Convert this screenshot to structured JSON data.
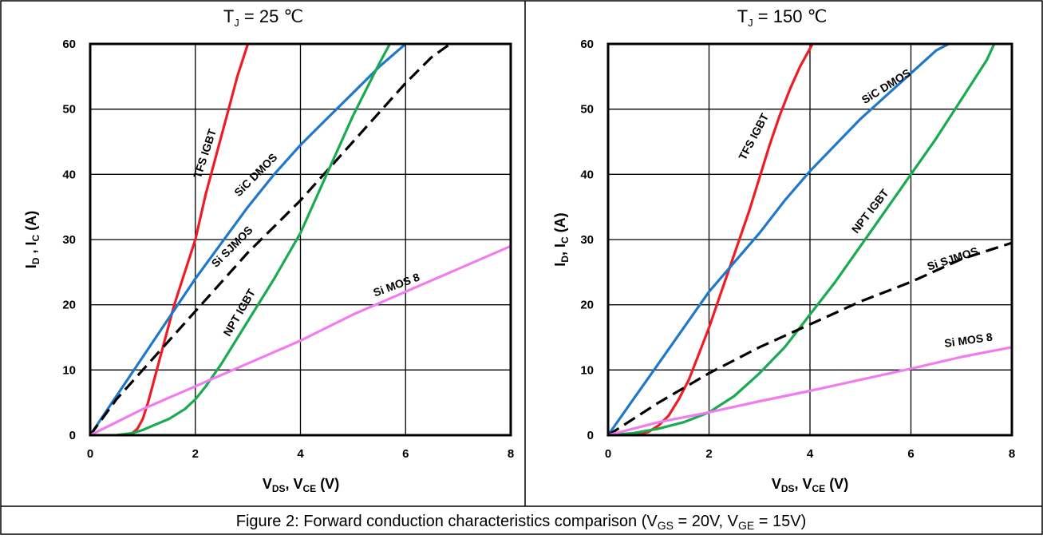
{
  "caption": {
    "prefix": "Figure 2:  Forward conduction characteristics comparison (V",
    "sub1": "GS",
    "mid": " = 20V, V",
    "sub2": "GE",
    "suffix": " = 15V)"
  },
  "colors": {
    "tfs_igbt": "#ee1c24",
    "sic_dmos": "#1f78c8",
    "npt_igbt": "#1aab50",
    "si_sjmos": "#000000",
    "si_mos8": "#f07cf0"
  },
  "chart_data": [
    {
      "type": "line",
      "title_main": "T",
      "title_sub": "J",
      "title_rest": " = 25 ℃",
      "xlabel": {
        "a": "V",
        "a_sub": "DS",
        "b": ", V",
        "b_sub": "CE",
        "c": " (V)"
      },
      "ylabel": {
        "a": "I",
        "a_sub": "D",
        "b": " , I",
        "b_sub": "C",
        "c": " (A)"
      },
      "xlim": [
        0,
        8
      ],
      "ylim": [
        0,
        60
      ],
      "xticks": [
        "0",
        "2",
        "4",
        "6",
        "8"
      ],
      "yticks": [
        "0",
        "10",
        "20",
        "30",
        "40",
        "50",
        "60"
      ],
      "grid": true,
      "series": [
        {
          "name": "TFS IGBT",
          "key": "tfs_igbt",
          "dash": false,
          "x": [
            0.6,
            0.8,
            0.9,
            1.0,
            1.1,
            1.2,
            1.4,
            1.6,
            1.8,
            2.0,
            2.2,
            2.4,
            2.6,
            2.8,
            3.0
          ],
          "y": [
            0,
            0.3,
            1,
            2.5,
            5,
            8,
            14,
            20,
            25,
            30,
            37,
            43,
            49,
            55,
            60
          ]
        },
        {
          "name": "SiC DMOS",
          "key": "sic_dmos",
          "dash": false,
          "x": [
            0,
            0.5,
            1,
            1.5,
            2,
            2.5,
            3,
            3.5,
            4,
            4.5,
            5,
            5.5,
            6
          ],
          "y": [
            0,
            6,
            12,
            18,
            24,
            29.5,
            35,
            40,
            44.5,
            48.5,
            52.5,
            56.5,
            60
          ]
        },
        {
          "name": "Si SJMOS",
          "key": "si_sjmos",
          "dash": true,
          "x": [
            0,
            0.5,
            1,
            1.5,
            2,
            2.5,
            3,
            3.5,
            4,
            4.5,
            5,
            5.5,
            6,
            6.5,
            6.85
          ],
          "y": [
            0,
            5.5,
            10,
            14.5,
            19,
            23.5,
            28,
            32,
            36,
            40.5,
            45,
            49.5,
            54,
            58,
            60
          ]
        },
        {
          "name": "NPT IGBT",
          "key": "npt_igbt",
          "dash": false,
          "x": [
            0.5,
            0.8,
            1.0,
            1.2,
            1.5,
            1.8,
            2.0,
            2.2,
            2.5,
            3.0,
            3.5,
            4.0,
            4.5,
            5.0,
            5.5,
            5.7
          ],
          "y": [
            0,
            0.3,
            0.8,
            1.5,
            2.5,
            4,
            5.5,
            7.5,
            11,
            17.5,
            24,
            31,
            40,
            49,
            57,
            60
          ]
        },
        {
          "name": "Si MOS 8",
          "key": "si_mos8",
          "dash": false,
          "x": [
            0,
            1,
            2,
            3,
            4,
            5,
            6,
            7,
            8
          ],
          "y": [
            0,
            4,
            7.5,
            11,
            14.5,
            18.5,
            22,
            25.5,
            29
          ]
        }
      ],
      "annotations": [
        {
          "text": "TFS IGBT",
          "key": "tfs_igbt",
          "x": 2.25,
          "y": 43,
          "rot": -72
        },
        {
          "text": "SiC DMOS",
          "key": "sic_dmos",
          "x": 3.2,
          "y": 39.5,
          "rot": -45
        },
        {
          "text": "Si SJMOS",
          "key": "si_sjmos",
          "x": 2.75,
          "y": 28.5,
          "rot": -45
        },
        {
          "text": "NPT IGBT",
          "key": "npt_igbt",
          "x": 2.9,
          "y": 18.5,
          "rot": -60
        },
        {
          "text": "Si MOS 8",
          "key": "si_mos8",
          "x": 5.85,
          "y": 22.5,
          "rot": -20
        }
      ]
    },
    {
      "type": "line",
      "title_main": "T",
      "title_sub": "J",
      "title_rest": " = 150 ℃",
      "xlabel": {
        "a": "V",
        "a_sub": "DS",
        "b": ", V",
        "b_sub": "CE",
        "c": " (V)"
      },
      "ylabel": {
        "a": "I",
        "a_sub": "D",
        "b": ", I",
        "b_sub": "C",
        "c": " (A)"
      },
      "xlim": [
        0,
        8
      ],
      "ylim": [
        0,
        60
      ],
      "xticks": [
        "0",
        "2",
        "4",
        "6",
        "8"
      ],
      "yticks": [
        "0",
        "10",
        "20",
        "30",
        "40",
        "50",
        "60"
      ],
      "grid": true,
      "series": [
        {
          "name": "TFS IGBT",
          "key": "tfs_igbt",
          "dash": false,
          "x": [
            0.5,
            0.8,
            1.0,
            1.2,
            1.4,
            1.6,
            1.8,
            2.0,
            2.2,
            2.4,
            2.6,
            2.8,
            3.0,
            3.2,
            3.4,
            3.6,
            3.8,
            4.05
          ],
          "y": [
            0,
            0.5,
            1.5,
            3,
            5.5,
            8.5,
            12.5,
            16.5,
            21,
            25.5,
            30,
            34.5,
            39.5,
            44.5,
            49,
            53,
            56.5,
            60
          ]
        },
        {
          "name": "SiC DMOS",
          "key": "sic_dmos",
          "dash": false,
          "x": [
            0,
            0.5,
            1,
            1.5,
            2,
            2.5,
            3,
            3.5,
            4,
            4.5,
            5,
            5.5,
            6,
            6.5,
            6.75
          ],
          "y": [
            0,
            5.5,
            11,
            16.5,
            22,
            26.5,
            31,
            36,
            40.5,
            44.5,
            48.5,
            52,
            55.5,
            59,
            60
          ]
        },
        {
          "name": "NPT IGBT",
          "key": "npt_igbt",
          "dash": false,
          "x": [
            0,
            0.5,
            1.0,
            1.5,
            2.0,
            2.5,
            3.0,
            3.5,
            4.0,
            4.5,
            5.0,
            5.5,
            6.0,
            6.5,
            7.0,
            7.5,
            7.65
          ],
          "y": [
            0,
            0.3,
            1,
            2,
            3.5,
            6,
            9.5,
            13.5,
            18.5,
            23.5,
            29,
            34.5,
            40,
            45.5,
            51.5,
            57.5,
            60
          ]
        },
        {
          "name": "Si SJMOS",
          "key": "si_sjmos",
          "dash": true,
          "x": [
            0,
            1,
            2,
            3,
            4,
            5,
            6,
            7,
            8
          ],
          "y": [
            0,
            5,
            9.5,
            13.5,
            17,
            20.5,
            23.5,
            27,
            29.5
          ]
        },
        {
          "name": "Si MOS 8",
          "key": "si_mos8",
          "dash": false,
          "x": [
            0,
            1,
            2,
            3,
            4,
            5,
            6,
            7,
            8
          ],
          "y": [
            0,
            2,
            3.5,
            5.2,
            6.8,
            8.5,
            10.2,
            12,
            13.5
          ]
        }
      ],
      "annotations": [
        {
          "text": "TFS IGBT",
          "key": "tfs_igbt",
          "x": 2.95,
          "y": 45.5,
          "rot": -62
        },
        {
          "text": "SiC DMOS",
          "key": "sic_dmos",
          "x": 5.55,
          "y": 53,
          "rot": -32
        },
        {
          "text": "NPT IGBT",
          "key": "npt_igbt",
          "x": 5.25,
          "y": 34,
          "rot": -52
        },
        {
          "text": "Si SJMOS",
          "key": "si_sjmos",
          "x": 6.85,
          "y": 26.5,
          "rot": -18
        },
        {
          "text": "Si MOS 8",
          "key": "si_mos8",
          "x": 7.15,
          "y": 14,
          "rot": -8
        }
      ]
    }
  ]
}
